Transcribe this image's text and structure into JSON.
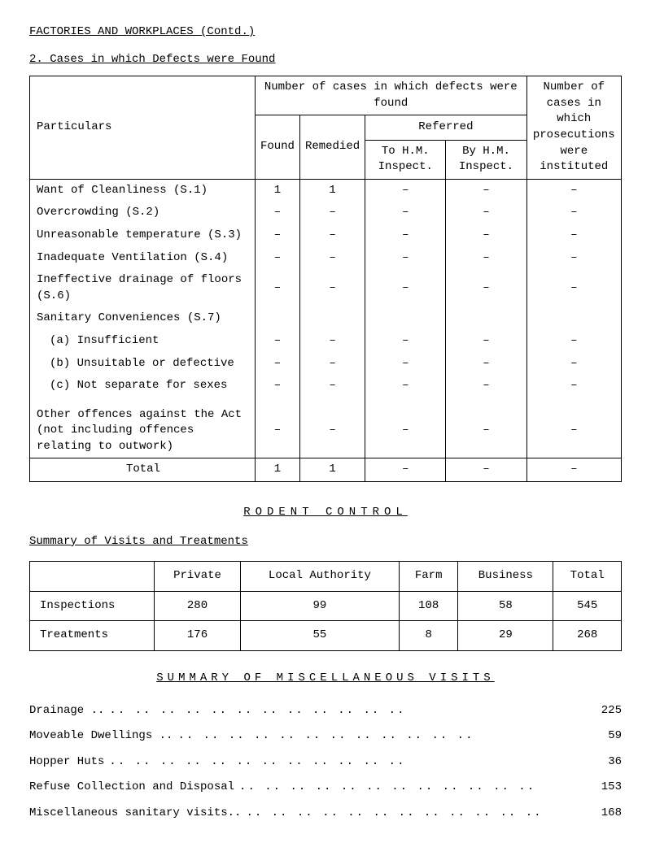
{
  "heading": "FACTORIES AND WORKPLACES (Contd.)",
  "subheading": "2. Cases in which Defects were Found",
  "table1": {
    "head": {
      "particulars": "Particulars",
      "group_a": "Number of cases in which defects were found",
      "found": "Found",
      "remedied": "Remedied",
      "referred": "Referred",
      "to_hm": "To H.M. Inspect.",
      "by_hm": "By H.M. Inspect.",
      "right": "Number of cases in which prosecutions were instituted"
    },
    "rows": [
      {
        "label": "Want of Cleanliness (S.1)",
        "found": "1",
        "rem": "1",
        "to": "–",
        "by": "–",
        "pros": "–"
      },
      {
        "label": "Overcrowding (S.2)",
        "found": "–",
        "rem": "–",
        "to": "–",
        "by": "–",
        "pros": "–"
      },
      {
        "label": "Unreasonable temperature (S.3)",
        "found": "–",
        "rem": "–",
        "to": "–",
        "by": "–",
        "pros": "–"
      },
      {
        "label": "Inadequate Ventilation (S.4)",
        "found": "–",
        "rem": "–",
        "to": "–",
        "by": "–",
        "pros": "–"
      },
      {
        "label": "Ineffective drainage of floors (S.6)",
        "found": "–",
        "rem": "–",
        "to": "–",
        "by": "–",
        "pros": "–"
      },
      {
        "label": "Sanitary Conveniences (S.7)",
        "found": "",
        "rem": "",
        "to": "",
        "by": "",
        "pros": ""
      },
      {
        "label": "(a) Insufficient",
        "indent": true,
        "found": "–",
        "rem": "–",
        "to": "–",
        "by": "–",
        "pros": "–"
      },
      {
        "label": "(b) Unsuitable or defective",
        "indent": true,
        "found": "–",
        "rem": "–",
        "to": "–",
        "by": "–",
        "pros": "–"
      },
      {
        "label": "(c) Not separate for sexes",
        "indent": true,
        "found": "–",
        "rem": "–",
        "to": "–",
        "by": "–",
        "pros": "–"
      },
      {
        "label": "",
        "found": "",
        "rem": "",
        "to": "",
        "by": "",
        "pros": ""
      },
      {
        "label": "Other offences against the Act (not including offences relating to outwork)",
        "found": "–",
        "rem": "–",
        "to": "–",
        "by": "–",
        "pros": "–"
      }
    ],
    "total": {
      "label": "Total",
      "found": "1",
      "rem": "1",
      "to": "–",
      "by": "–",
      "pros": "–"
    }
  },
  "mid_heading": "RODENT CONTROL",
  "summary_visits_heading": "Summary of Visits and Treatments",
  "table2": {
    "head": {
      "blank": "",
      "private": "Private",
      "la": "Local Authority",
      "farm": "Farm",
      "business": "Business",
      "total": "Total"
    },
    "rows": [
      {
        "label": "Inspections",
        "private": "280",
        "la": "99",
        "farm": "108",
        "business": "58",
        "total": "545"
      },
      {
        "label": "Treatments",
        "private": "176",
        "la": "55",
        "farm": "8",
        "business": "29",
        "total": "268"
      }
    ]
  },
  "summary_heading": "SUMMARY OF MISCELLANEOUS VISITS",
  "dots_fill": "..   ..   ..   ..   ..   ..   ..   ..   ..   ..   ..   ..",
  "visits": [
    {
      "label": "Drainage ..",
      "value": "225"
    },
    {
      "label": "Moveable Dwellings ..",
      "value": "59"
    },
    {
      "label": "Hopper Huts",
      "value": "36"
    },
    {
      "label": "Refuse Collection and Disposal",
      "value": "153"
    },
    {
      "label": "Miscellaneous sanitary visits..",
      "value": "168"
    }
  ]
}
